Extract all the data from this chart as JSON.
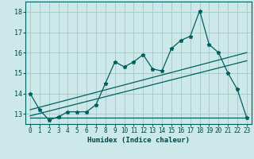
{
  "title": "",
  "xlabel": "Humidex (Indice chaleur)",
  "ylabel": "",
  "background_color": "#cce8e8",
  "grid_color": "#aacccc",
  "line_color": "#006060",
  "x_values": [
    0,
    1,
    2,
    3,
    4,
    5,
    6,
    7,
    8,
    9,
    10,
    11,
    12,
    13,
    14,
    15,
    16,
    17,
    18,
    19,
    20,
    21,
    22,
    23
  ],
  "line1_y": [
    14.0,
    13.2,
    12.7,
    12.85,
    13.1,
    13.1,
    13.1,
    13.45,
    14.5,
    15.55,
    15.3,
    15.55,
    15.9,
    15.2,
    15.1,
    16.2,
    16.6,
    16.8,
    18.05,
    16.4,
    16.0,
    15.0,
    14.2,
    12.8
  ],
  "line2_y": [
    12.8,
    12.8,
    12.8,
    12.8,
    12.8,
    12.8,
    12.8,
    12.8,
    12.8,
    12.8,
    12.8,
    12.8,
    12.8,
    12.8,
    12.8,
    12.8,
    12.8,
    12.8,
    12.8,
    12.8,
    12.8,
    12.8,
    12.8,
    12.8
  ],
  "trend1_x": [
    0,
    23
  ],
  "trend1_y": [
    13.2,
    16.0
  ],
  "trend2_x": [
    0,
    23
  ],
  "trend2_y": [
    12.9,
    15.6
  ],
  "ylim": [
    12.5,
    18.5
  ],
  "xlim": [
    -0.5,
    23.5
  ],
  "yticks": [
    13,
    14,
    15,
    16,
    17,
    18
  ],
  "xticks": [
    0,
    1,
    2,
    3,
    4,
    5,
    6,
    7,
    8,
    9,
    10,
    11,
    12,
    13,
    14,
    15,
    16,
    17,
    18,
    19,
    20,
    21,
    22,
    23
  ],
  "xlabel_fontsize": 6.5,
  "tick_fontsize": 5.5,
  "ytick_fontsize": 6.0
}
